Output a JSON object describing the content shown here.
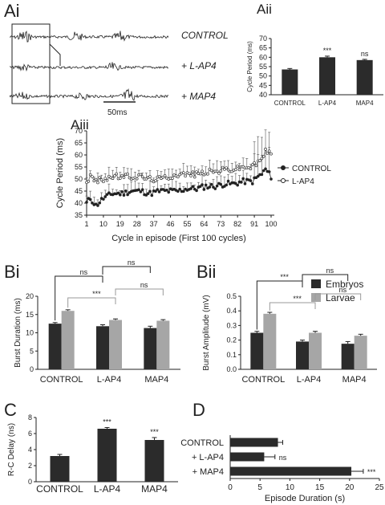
{
  "panels": {
    "ai": "Ai",
    "aii": "Aii",
    "aiii": "Aiii",
    "bi": "Bi",
    "bii": "Bii",
    "c": "C",
    "d": "D"
  },
  "traces": {
    "labels": [
      "CONTROL",
      "+ L-AP4",
      "+ MAP4"
    ],
    "scalebar": "50ms"
  },
  "legend": {
    "items": [
      "Embryos",
      "Larvae"
    ],
    "colors": [
      "#2b2b2b",
      "#a6a6a6"
    ]
  },
  "chart_data": [
    {
      "id": "aii",
      "type": "bar",
      "categories": [
        "CONTROL",
        "L-AP4",
        "MAP4"
      ],
      "values": [
        53.5,
        60,
        58.5
      ],
      "errors": [
        0.5,
        0.6,
        0.4
      ],
      "annotations": [
        "",
        "***",
        "ns"
      ],
      "ylabel": "Cycle Period (ms)",
      "ylim": [
        40,
        70
      ],
      "yticks": [
        40,
        45,
        50,
        55,
        60,
        65,
        70
      ]
    },
    {
      "id": "aiii",
      "type": "line",
      "xlabel": "Cycle in episode (First 100 cycles)",
      "ylabel": "Cycle Period (ms)",
      "ylim": [
        35,
        70
      ],
      "yticks": [
        35,
        40,
        45,
        50,
        55,
        60,
        65,
        70
      ],
      "xticks": [
        1,
        10,
        19,
        28,
        37,
        46,
        55,
        64,
        73,
        82,
        91,
        100
      ],
      "series": [
        {
          "name": "CONTROL",
          "marker": "filled",
          "anchors_x": [
            1,
            3,
            6,
            10,
            15,
            20,
            25,
            30,
            35,
            40,
            45,
            50,
            55,
            60,
            65,
            70,
            75,
            80,
            85,
            90,
            93,
            95,
            97,
            100
          ],
          "anchors_y": [
            40,
            42,
            39,
            42,
            44,
            44,
            45,
            45,
            44,
            45,
            45,
            45,
            46,
            46,
            47,
            47,
            48,
            48,
            49,
            49,
            51,
            52,
            54,
            51
          ]
        },
        {
          "name": "L-AP4",
          "marker": "open",
          "anchors_x": [
            1,
            3,
            6,
            10,
            15,
            20,
            25,
            30,
            35,
            40,
            45,
            50,
            55,
            60,
            65,
            70,
            75,
            80,
            85,
            90,
            93,
            95,
            97,
            100
          ],
          "anchors_y": [
            49,
            51,
            49,
            50,
            51,
            51,
            51,
            51,
            50,
            50,
            51,
            52,
            52,
            52,
            53,
            53,
            54,
            54,
            55,
            55,
            57,
            58,
            62,
            60
          ]
        }
      ]
    },
    {
      "id": "bi",
      "type": "bar",
      "categories": [
        "CONTROL",
        "L-AP4",
        "MAP4"
      ],
      "series": [
        {
          "name": "Embryos",
          "values": [
            12.5,
            11.8,
            11.3
          ],
          "errors": [
            0.3,
            0.4,
            0.5
          ]
        },
        {
          "name": "Larvae",
          "values": [
            16,
            13.5,
            13.3
          ],
          "errors": [
            0.3,
            0.3,
            0.3
          ]
        }
      ],
      "ylabel": "Burst Duration (ms)",
      "ylim": [
        0,
        20
      ],
      "yticks": [
        0,
        5,
        10,
        15,
        20
      ],
      "brackets": [
        {
          "label": "ns",
          "color": "#222"
        },
        {
          "label": "ns",
          "color": "#222"
        },
        {
          "label": "***",
          "color": "#999"
        },
        {
          "label": "ns",
          "color": "#999"
        }
      ]
    },
    {
      "id": "bii",
      "type": "bar",
      "categories": [
        "CONTROL",
        "L-AP4",
        "MAP4"
      ],
      "series": [
        {
          "name": "Embryos",
          "values": [
            0.25,
            0.19,
            0.175
          ],
          "errors": [
            0.01,
            0.01,
            0.015
          ]
        },
        {
          "name": "Larvae",
          "values": [
            0.38,
            0.25,
            0.23
          ],
          "errors": [
            0.01,
            0.01,
            0.01
          ]
        }
      ],
      "ylabel": "Burst Amplitude (mV)",
      "ylim": [
        0,
        0.5
      ],
      "yticks": [
        0,
        0.1,
        0.2,
        0.3,
        0.4,
        0.5
      ],
      "brackets": [
        {
          "label": "***",
          "color": "#222"
        },
        {
          "label": "ns",
          "color": "#222"
        },
        {
          "label": "***",
          "color": "#999"
        },
        {
          "label": "ns",
          "color": "#999"
        }
      ]
    },
    {
      "id": "c",
      "type": "bar",
      "categories": [
        "CONTROL",
        "L-AP4",
        "MAP4"
      ],
      "values": [
        3.2,
        6.6,
        5.2
      ],
      "errors": [
        0.2,
        0.15,
        0.3
      ],
      "annotations": [
        "",
        "***",
        "***"
      ],
      "ylabel": "R-C Delay (ns)",
      "ylim": [
        0,
        8
      ],
      "yticks": [
        0,
        2,
        4,
        6,
        8
      ]
    },
    {
      "id": "d",
      "type": "bar",
      "orientation": "horizontal",
      "categories": [
        "CONTROL",
        "+ L-AP4",
        "+ MAP4"
      ],
      "values": [
        8,
        5.7,
        20.3
      ],
      "errors": [
        0.8,
        1.8,
        2
      ],
      "annotations": [
        "",
        "ns",
        "***"
      ],
      "xlabel": "Episode Duration (s)",
      "xlim": [
        0,
        25
      ],
      "xticks": [
        0,
        5,
        10,
        15,
        20,
        25
      ]
    }
  ]
}
